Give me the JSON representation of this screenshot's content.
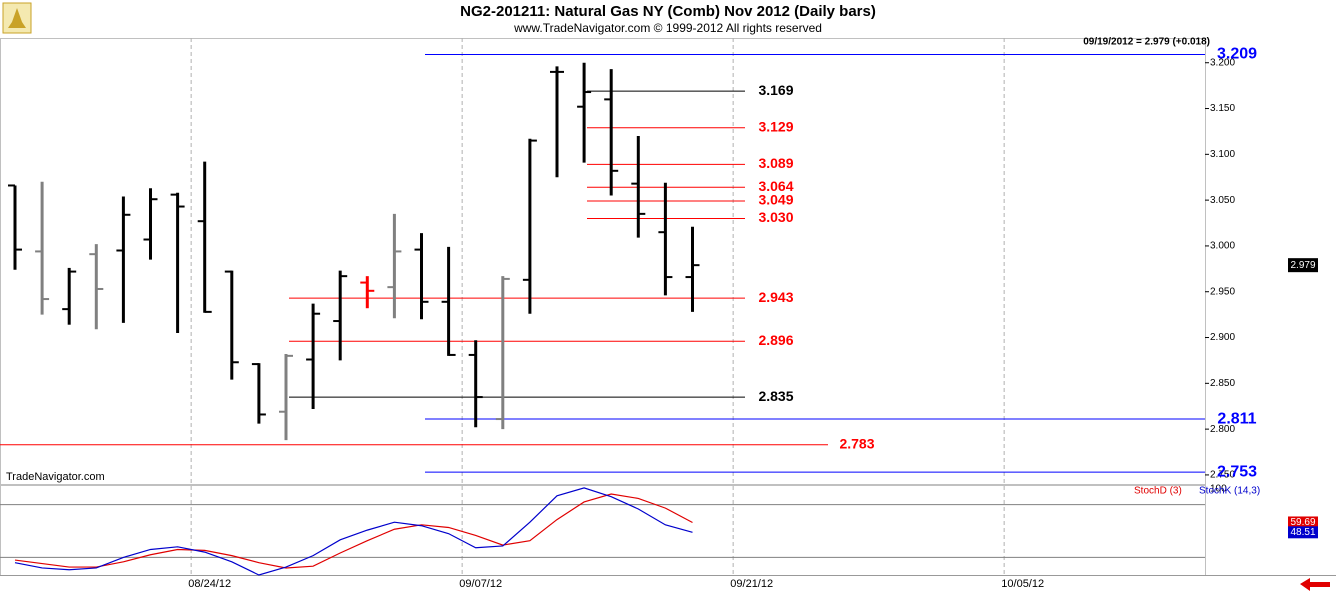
{
  "chart_data": [
    {
      "type": "ohlc",
      "title": "NG2-201211:  Natural Gas NY (Comb) Nov 2012  (Daily bars)",
      "subtitle": "www.TradeNavigator.com © 1999-2012 All rights reserved",
      "info": "09/19/2012 = 2.979 (+0.018)",
      "watermark": "TradeNavigator.com",
      "ylim": [
        2.739,
        3.227
      ],
      "yticks": [
        {
          "value": 2.75,
          "label": "2.750"
        },
        {
          "value": 2.8,
          "label": "2.800"
        },
        {
          "value": 2.85,
          "label": "2.850"
        },
        {
          "value": 2.9,
          "label": "2.900"
        },
        {
          "value": 2.95,
          "label": "2.950"
        },
        {
          "value": 3.0,
          "label": "3.000"
        },
        {
          "value": 3.05,
          "label": "3.050"
        },
        {
          "value": 3.1,
          "label": "3.100"
        },
        {
          "value": 3.15,
          "label": "3.150"
        },
        {
          "value": 3.2,
          "label": "3.200"
        }
      ],
      "open": [
        3.066,
        2.994,
        2.931,
        2.991,
        2.995,
        3.007,
        3.056,
        3.027,
        2.972,
        2.871,
        2.819,
        2.876,
        2.918,
        2.96,
        2.955,
        2.996,
        2.939,
        2.881,
        2.811,
        2.963,
        3.19,
        3.152,
        3.16,
        3.068,
        3.015,
        2.966,
        null,
        null,
        null,
        null,
        null,
        null,
        null,
        null,
        null,
        null,
        null,
        null,
        null,
        null,
        null,
        null,
        null,
        null,
        null
      ],
      "high": [
        3.066,
        3.07,
        2.976,
        3.002,
        3.054,
        3.063,
        3.058,
        3.092,
        2.973,
        2.872,
        2.882,
        2.937,
        2.973,
        2.967,
        3.035,
        3.014,
        2.999,
        2.897,
        2.967,
        3.117,
        3.196,
        3.2,
        3.193,
        3.12,
        3.069,
        3.021,
        null,
        null,
        null,
        null,
        null,
        null,
        null,
        null,
        null,
        null,
        null,
        null,
        null,
        null,
        null,
        null,
        null,
        null,
        null
      ],
      "low": [
        2.974,
        2.925,
        2.914,
        2.909,
        2.916,
        2.985,
        2.905,
        2.927,
        2.854,
        2.806,
        2.788,
        2.822,
        2.875,
        2.932,
        2.921,
        2.92,
        2.88,
        2.802,
        2.8,
        2.926,
        3.075,
        3.091,
        3.055,
        3.009,
        2.946,
        2.928,
        null,
        null,
        null,
        null,
        null,
        null,
        null,
        null,
        null,
        null,
        null,
        null,
        null,
        null,
        null,
        null,
        null,
        null,
        null
      ],
      "close": [
        2.996,
        2.942,
        2.972,
        2.953,
        3.034,
        3.051,
        3.043,
        2.928,
        2.873,
        2.816,
        2.88,
        2.926,
        2.967,
        2.951,
        2.994,
        2.939,
        2.881,
        2.835,
        2.964,
        3.115,
        3.19,
        3.168,
        3.082,
        3.035,
        2.966,
        2.979,
        null,
        null,
        null,
        null,
        null,
        null,
        null,
        null,
        null,
        null,
        null,
        null,
        null,
        null,
        null,
        null,
        null,
        null,
        null
      ],
      "colors": [
        "#000000",
        "#808080",
        "#000000",
        "#808080",
        "#000000",
        "#000000",
        "#000000",
        "#000000",
        "#000000",
        "#000000",
        "#808080",
        "#000000",
        "#000000",
        "#ff0000",
        "#808080",
        "#000000",
        "#000000",
        "#000000",
        "#808080",
        "#000000",
        "#000000",
        "#000000",
        "#000000",
        "#000000",
        "#000000",
        "#000000",
        null,
        null,
        null,
        null,
        null,
        null,
        null,
        null,
        null,
        null,
        null,
        null,
        null,
        null,
        null,
        null,
        null,
        null,
        null
      ],
      "levels": [
        {
          "value": 3.209,
          "color": "#0000ff"
        },
        {
          "value": 3.169,
          "color": "#000000"
        },
        {
          "value": 3.129,
          "color": "#ff0000"
        },
        {
          "value": 3.089,
          "color": "#ff0000"
        },
        {
          "value": 3.064,
          "color": "#ff0000"
        },
        {
          "value": 3.049,
          "color": "#ff0000"
        },
        {
          "value": 3.03,
          "label": "3.030",
          "color": "#ff0000"
        },
        {
          "value": 2.943,
          "color": "#ff0000"
        },
        {
          "value": 2.896,
          "color": "#ff0000"
        },
        {
          "value": 2.835,
          "color": "#000000"
        },
        {
          "value": 2.811,
          "color": "#0000ff"
        },
        {
          "value": 2.783,
          "color": "#ff0000"
        },
        {
          "value": 2.753,
          "color": "#0000ff"
        }
      ]
    },
    {
      "type": "line",
      "categories": [
        null,
        null,
        null,
        null,
        null,
        null,
        null,
        "08/24/12",
        null,
        null,
        null,
        null,
        null,
        null,
        null,
        null,
        null,
        "09/07/12",
        null,
        null,
        null,
        null,
        null,
        null,
        null,
        null,
        null,
        "09/21/12",
        null,
        null,
        null,
        null,
        null,
        null,
        null,
        null,
        null,
        "10/05/12",
        null,
        null,
        null,
        null,
        null,
        null,
        null
      ],
      "ylim": [
        0,
        100
      ],
      "yticks": [
        100
      ],
      "levels": [
        20,
        80
      ],
      "series": [
        {
          "name": "StochD (3)",
          "color": "#e00000",
          "values": [
            17,
            13,
            9,
            9,
            15,
            23,
            29,
            28,
            22,
            14,
            8,
            10,
            25,
            39,
            52,
            57,
            54,
            45,
            34,
            39,
            63,
            83,
            92,
            87,
            76,
            59.69,
            null,
            null,
            null,
            null,
            null,
            null,
            null,
            null,
            null,
            null,
            null,
            null,
            null,
            null,
            null,
            null,
            null,
            null,
            null
          ]
        },
        {
          "name": "StochK (14,3)",
          "color": "#0000cc",
          "values": [
            14,
            8,
            6,
            8,
            20,
            29,
            32,
            26,
            15,
            0,
            9,
            22,
            40,
            51,
            60,
            56,
            47,
            31,
            33,
            60,
            90,
            99,
            89,
            75,
            57,
            48.51,
            null,
            null,
            null,
            null,
            null,
            null,
            null,
            null,
            null,
            null,
            null,
            null,
            null,
            null,
            null,
            null,
            null,
            null,
            null
          ]
        }
      ]
    }
  ]
}
